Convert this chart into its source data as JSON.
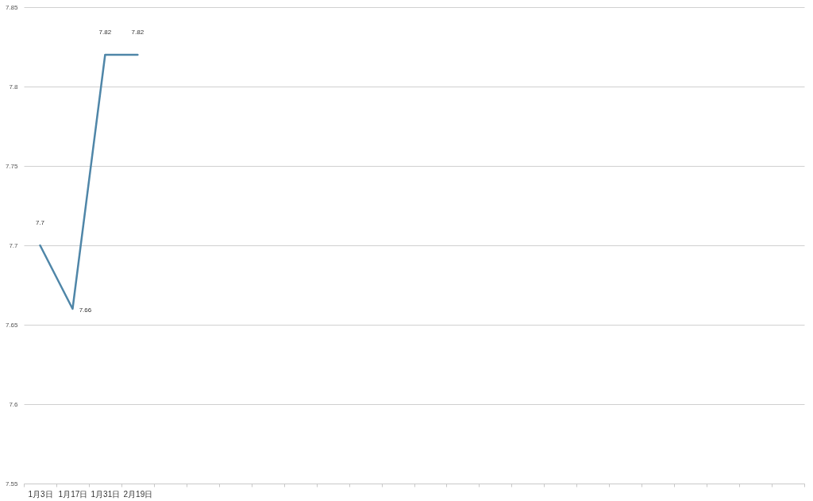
{
  "chart_data": {
    "type": "line",
    "categories": [
      "1月3日",
      "1月17日",
      "1月31日",
      "2月19日",
      null,
      null,
      null,
      null,
      null,
      null,
      null,
      null,
      null,
      null,
      null,
      null,
      null,
      null,
      null,
      null,
      null,
      null,
      null,
      null
    ],
    "series": [
      {
        "color": "#4f86a8",
        "values": [
          7.7,
          7.66,
          7.82,
          7.82,
          null,
          null,
          null,
          null,
          null,
          null,
          null,
          null,
          null,
          null,
          null,
          null,
          null,
          null,
          null,
          null,
          null,
          null,
          null,
          null
        ]
      }
    ],
    "ylim": [
      7.55,
      7.85
    ],
    "yticks": [
      7.55,
      7.6,
      7.65,
      7.7,
      7.75,
      7.8,
      7.85
    ],
    "grid": "y",
    "data_labels": true
  }
}
